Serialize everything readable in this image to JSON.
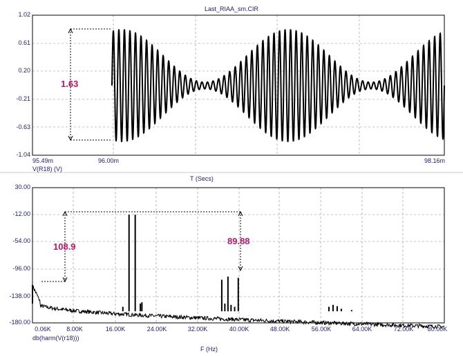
{
  "window": {
    "title": "Last_RIAA_sm.CIR"
  },
  "top_plot": {
    "y_ticks": [
      "1.02",
      "0.61",
      "0.20",
      "-0.21",
      "-0.63",
      "-1.04"
    ],
    "x_ticks": [
      "95.49m",
      "96.00m",
      "98.16m"
    ],
    "trace_label": "V(R18) (V)",
    "x_axis_label": "T (Secs)",
    "annotation": "1.63"
  },
  "bottom_plot": {
    "y_ticks": [
      "30.00",
      "-12.00",
      "-54.00",
      "-96.00",
      "-138.00",
      "-180.00"
    ],
    "x_ticks": [
      "0.06K",
      "8.00K",
      "16.00K",
      "24.00K",
      "32.00K",
      "40.00K",
      "48.00K",
      "56.00K",
      "64.00K",
      "72.00K",
      "80.00K"
    ],
    "trace_label": "db(harm(V(r18)))",
    "x_axis_label": "F (Hz)",
    "annotation_left": "108.9",
    "annotation_right": "89.88"
  },
  "colors": {
    "axis_text": "#1a1a7a",
    "annotation": "#c0166a",
    "trace": "#000000",
    "grid": "#888888"
  },
  "chart_data": [
    {
      "type": "line",
      "title": "Last_RIAA_sm.CIR",
      "xlabel": "T (Secs)",
      "ylabel": "V(R18) (V)",
      "xlim": [
        95.49,
        98.16
      ],
      "ylim": [
        -1.04,
        1.02
      ],
      "series": [
        {
          "name": "V(R18) (V)",
          "x": [
            96.0,
            96.18,
            96.5,
            96.75,
            96.95,
            97.25,
            97.5,
            97.75,
            97.9,
            98.16
          ],
          "y": [
            0.83,
            0.8,
            0.45,
            0.05,
            0.75,
            0.85,
            0.3,
            0.05,
            0.75,
            0.83
          ]
        }
      ]
    },
    {
      "type": "line",
      "title": "",
      "xlabel": "F (Hz)",
      "ylabel": "db(harm(V(r18)))",
      "xlim": [
        0.06,
        80.0
      ],
      "ylim": [
        -180.0,
        30.0
      ],
      "series": [
        {
          "name": "db(harm(V(r18)))",
          "x": [
            0.06,
            1.0,
            5.0,
            10.0,
            18.8,
            20.0,
            36.8,
            38.0,
            40.0,
            58.0,
            80.0
          ],
          "y": [
            -121.0,
            -152.0,
            -157.0,
            -162.0,
            -12.0,
            -12.0,
            -113.0,
            -108.0,
            -110.0,
            -158.0,
            -178.0
          ]
        }
      ]
    }
  ]
}
